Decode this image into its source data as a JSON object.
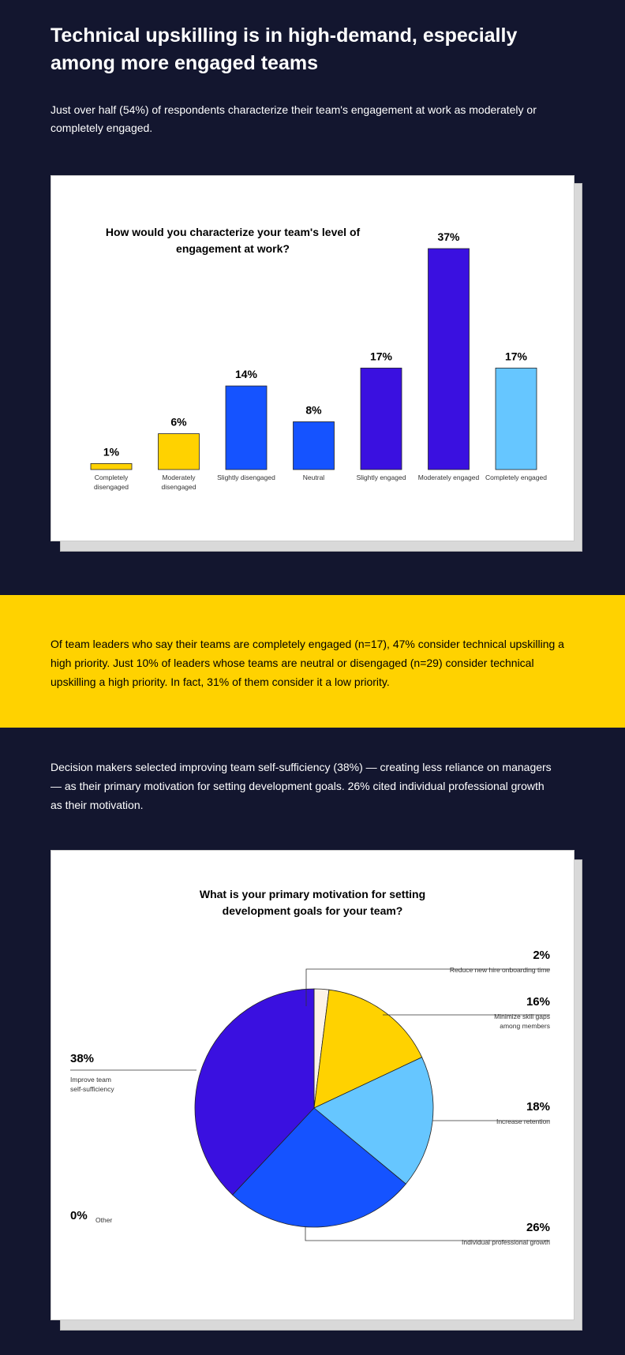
{
  "page": {
    "title": "Technical upskilling is in high-demand, especially among more engaged teams",
    "intro": "Just over half (54%) of respondents characterize their team's engagement at work as moderately or completely engaged.",
    "callout": "Of team leaders who say their teams are completely engaged (n=17), 47% consider technical upskilling a high priority. Just 10% of leaders whose teams are neutral or disengaged (n=29) consider technical upskilling a high priority. In fact, 31% of them consider it a low priority.",
    "paragraph2": "Decision makers selected improving team self-sufficiency (38%) — creating less reliance on managers — as their primary motivation for setting development goals. 26% cited individual professional growth as their motivation."
  },
  "chart_data": [
    {
      "type": "bar",
      "title": "How would you characterize your team's level of engagement at work?",
      "categories": [
        "Completely disengaged",
        "Moderately disengaged",
        "Slightly disengaged",
        "Neutral",
        "Slightly engaged",
        "Moderately engaged",
        "Completely engaged"
      ],
      "category_lines": [
        [
          "Completely",
          "disengaged"
        ],
        [
          "Moderately",
          "disengaged"
        ],
        [
          "Slightly disengaged"
        ],
        [
          "Neutral"
        ],
        [
          "Slightly engaged"
        ],
        [
          "Moderately engaged"
        ],
        [
          "Completely engaged"
        ]
      ],
      "values": [
        1,
        6,
        14,
        8,
        17,
        37,
        17
      ],
      "value_labels": [
        "1%",
        "6%",
        "14%",
        "8%",
        "17%",
        "37%",
        "17%"
      ],
      "colors": [
        "#ffd200",
        "#ffd200",
        "#1553ff",
        "#1553ff",
        "#3a10e0",
        "#3a10e0",
        "#66c6ff"
      ],
      "ylim": [
        0,
        37
      ],
      "grid": false
    },
    {
      "type": "pie",
      "title": "What is your primary motivation for setting development goals for your team?",
      "slices": [
        {
          "label": "Reduce new hire onboarding time",
          "label_lines": [
            "Reduce new hire onboarding time"
          ],
          "value": 2,
          "value_label": "2%",
          "color": "#fdf3e8"
        },
        {
          "label": "Minimize skill gaps among members",
          "label_lines": [
            "Minimize skill gaps",
            "among members"
          ],
          "value": 16,
          "value_label": "16%",
          "color": "#ffd200"
        },
        {
          "label": "Increase retention",
          "label_lines": [
            "Increase retention"
          ],
          "value": 18,
          "value_label": "18%",
          "color": "#66c6ff"
        },
        {
          "label": "Individual professional growth",
          "label_lines": [
            "Individual professional growth"
          ],
          "value": 26,
          "value_label": "26%",
          "color": "#1553ff"
        },
        {
          "label": "Improve team self-sufficiency",
          "label_lines": [
            "Improve team",
            "self-sufficiency"
          ],
          "value": 38,
          "value_label": "38%",
          "color": "#3a10e0"
        },
        {
          "label": "Other",
          "label_lines": [
            "Other"
          ],
          "value": 0,
          "value_label": "0%",
          "color": "#ffffff"
        }
      ]
    }
  ]
}
